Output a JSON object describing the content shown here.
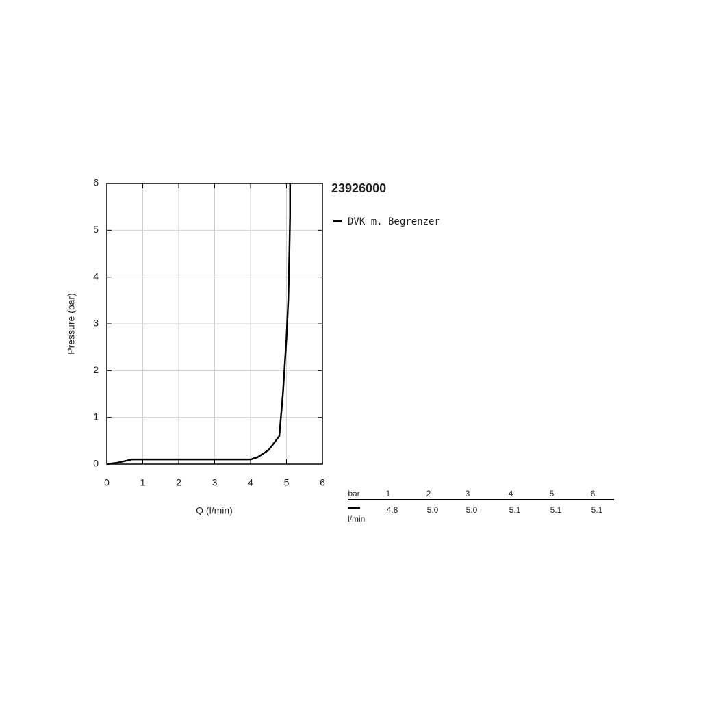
{
  "chart_data": {
    "type": "line",
    "title": "23926000",
    "x_label": "Q (l/min)",
    "y_label": "Pressure (bar)",
    "x": [
      0,
      0.3,
      0.7,
      1,
      2,
      3,
      4,
      4.2,
      4.5,
      4.8,
      4.9,
      5.0,
      5.05,
      5.08,
      5.1,
      5.1
    ],
    "series": [
      {
        "name": "DVK m. Begrenzer",
        "color": "#000000",
        "values": [
          0,
          0.03,
          0.1,
          0.1,
          0.1,
          0.1,
          0.1,
          0.15,
          0.3,
          0.6,
          1.5,
          2.7,
          3.5,
          4.5,
          5.3,
          6
        ]
      }
    ],
    "xlim": [
      0,
      6
    ],
    "ylim": [
      0,
      6
    ],
    "xticks": [
      0,
      1,
      2,
      3,
      4,
      5,
      6
    ],
    "yticks": [
      0,
      1,
      2,
      3,
      4,
      5,
      6
    ],
    "grid": true
  },
  "table": {
    "header": [
      "bar",
      "1",
      "2",
      "3",
      "4",
      "5",
      "6"
    ],
    "unit": "l/min",
    "values": [
      "4.8",
      "5.0",
      "5.0",
      "5.1",
      "5.1",
      "5.1"
    ]
  }
}
